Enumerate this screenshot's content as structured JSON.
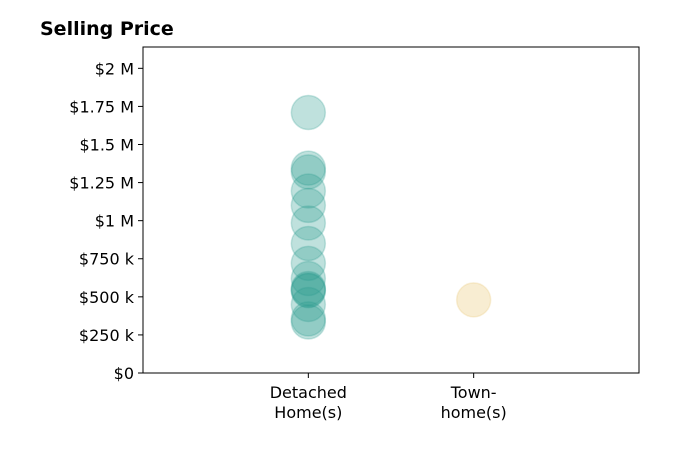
{
  "chart_data": {
    "type": "scatter",
    "title": "Selling Price",
    "xlabel": "",
    "ylabel": "",
    "categories": [
      {
        "lines": [
          "Detached",
          "Home(s)"
        ]
      },
      {
        "lines": [
          "Town-",
          "home(s)"
        ]
      }
    ],
    "y_ticks": [
      {
        "value": 0,
        "label": "$0"
      },
      {
        "value": 250000,
        "label": "$250 k"
      },
      {
        "value": 500000,
        "label": "$500 k"
      },
      {
        "value": 750000,
        "label": "$750 k"
      },
      {
        "value": 1000000,
        "label": "$1 M"
      },
      {
        "value": 1250000,
        "label": "$1.25 M"
      },
      {
        "value": 1500000,
        "label": "$1.5 M"
      },
      {
        "value": 1750000,
        "label": "$1.75 M"
      },
      {
        "value": 2000000,
        "label": "$2 M"
      }
    ],
    "ylim": [
      0,
      2140000
    ],
    "xlim": [
      -1,
      2
    ],
    "grid": false,
    "series": [
      {
        "category_index": 0,
        "color": "#2a9d8f",
        "values": [
          1710000,
          1345000,
          1320000,
          1195000,
          1100000,
          985000,
          850000,
          720000,
          620000,
          555000,
          545000,
          540000,
          450000,
          355000,
          335000
        ]
      },
      {
        "category_index": 1,
        "color": "#e9c46a",
        "values": [
          480000
        ]
      }
    ]
  }
}
